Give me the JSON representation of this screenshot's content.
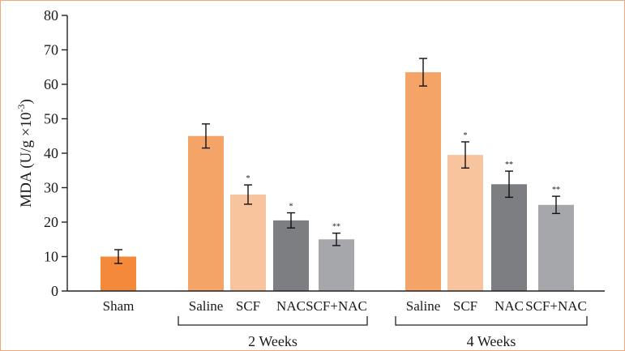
{
  "chart_data": {
    "type": "bar",
    "ylabel": "MDA (U/g ×10",
    "ylabel_exp": "-3",
    "ylabel_close": ")",
    "ylim": [
      0,
      80
    ],
    "yticks": [
      "0",
      "10",
      "20",
      "30",
      "40",
      "50",
      "60",
      "70",
      "80"
    ],
    "bars": [
      {
        "label": "Sham",
        "value": 10,
        "error": 2,
        "sig": "",
        "color": "#f4893b"
      },
      {
        "label": "Saline",
        "value": 45,
        "error": 3.5,
        "sig": "",
        "color": "#f5a468"
      },
      {
        "label": "SCF",
        "value": 28,
        "error": 2.8,
        "sig": "*",
        "color": "#f7c49e"
      },
      {
        "label": "NAC",
        "value": 20.5,
        "error": 2.2,
        "sig": "*",
        "color": "#7d7e82"
      },
      {
        "label": "SCF+NAC",
        "value": 15,
        "error": 1.8,
        "sig": "**",
        "color": "#a6a7aa"
      },
      {
        "label": "Saline",
        "value": 63.5,
        "error": 4,
        "sig": "",
        "color": "#f5a468"
      },
      {
        "label": "SCF",
        "value": 39.5,
        "error": 3.8,
        "sig": "*",
        "color": "#f7c49e"
      },
      {
        "label": "NAC",
        "value": 31,
        "error": 3.8,
        "sig": "**",
        "color": "#7d7e82"
      },
      {
        "label": "SCF+NAC",
        "value": 25,
        "error": 2.5,
        "sig": "**",
        "color": "#a6a7aa"
      }
    ],
    "groups": [
      {
        "label": "2 Weeks",
        "bar_indices": [
          1,
          2,
          3,
          4
        ]
      },
      {
        "label": "4 Weeks",
        "bar_indices": [
          5,
          6,
          7,
          8
        ]
      }
    ]
  }
}
